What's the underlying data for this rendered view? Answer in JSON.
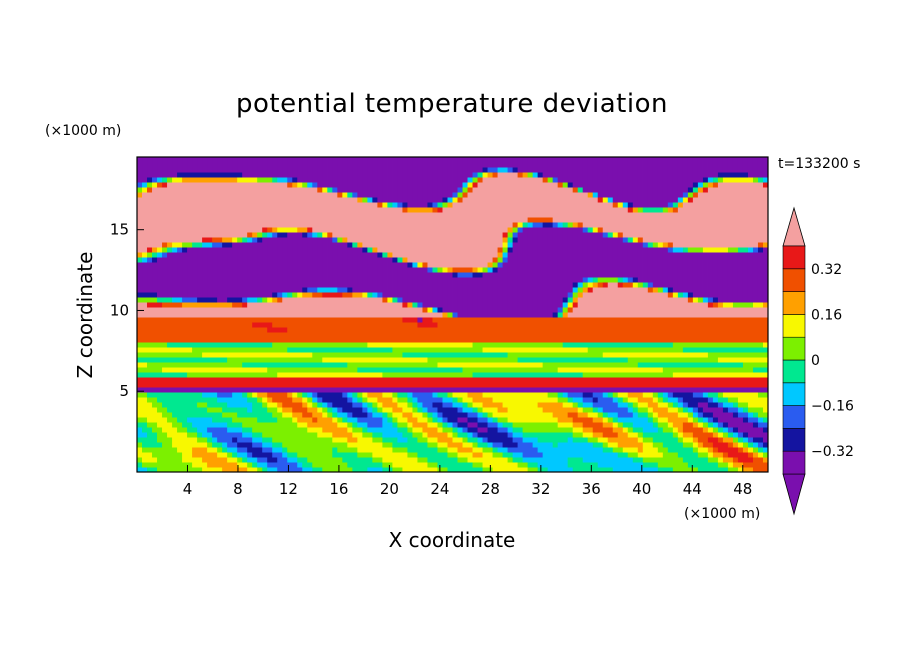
{
  "chart_data": {
    "type": "heatmap",
    "title": "potential temperature deviation",
    "xlabel": "X coordinate",
    "ylabel": "Z coordinate",
    "x_unit": "(×1000 m)",
    "y_unit": "(×1000 m)",
    "time_label": "t=133200 s",
    "xlim": [
      0,
      50
    ],
    "ylim": [
      0,
      19.5
    ],
    "x_ticks": [
      4,
      8,
      12,
      16,
      20,
      24,
      28,
      32,
      36,
      40,
      44,
      48
    ],
    "y_ticks": [
      5,
      10,
      15
    ],
    "x_tick_labels": [
      "4",
      "8",
      "12",
      "16",
      "20",
      "24",
      "28",
      "32",
      "36",
      "40",
      "44",
      "48"
    ],
    "y_tick_labels": [
      "5",
      "10",
      "15"
    ],
    "colorbar": {
      "levels": [
        -0.4,
        -0.32,
        -0.24,
        -0.16,
        -0.08,
        0,
        0.08,
        0.16,
        0.24,
        0.32,
        0.4
      ],
      "tick_values": [
        -0.32,
        -0.16,
        0,
        0.16,
        0.32
      ],
      "tick_labels": [
        "−0.32",
        "−0.16",
        "0",
        "0.16",
        "0.32"
      ],
      "colors": [
        "#7a0fae",
        "#7a0fae",
        "#1414a0",
        "#2a5cf0",
        "#00c8ff",
        "#00e890",
        "#7cf000",
        "#f8f800",
        "#ffa000",
        "#f05000",
        "#e81818",
        "#f4a0a0"
      ],
      "extend": "both"
    },
    "layers": [
      {
        "z_range": [
          0,
          5
        ],
        "description_value": "mixed -0.4 to 0.4"
      },
      {
        "z_range": [
          5,
          6
        ],
        "value": 0.4
      },
      {
        "z_range": [
          6,
          8
        ],
        "value": 0.05
      },
      {
        "z_range": [
          8,
          9.5
        ],
        "value": 0.3
      },
      {
        "z_range": [
          9.5,
          19.5
        ],
        "description_value": "alternating -0.45 / 0.45"
      }
    ]
  }
}
